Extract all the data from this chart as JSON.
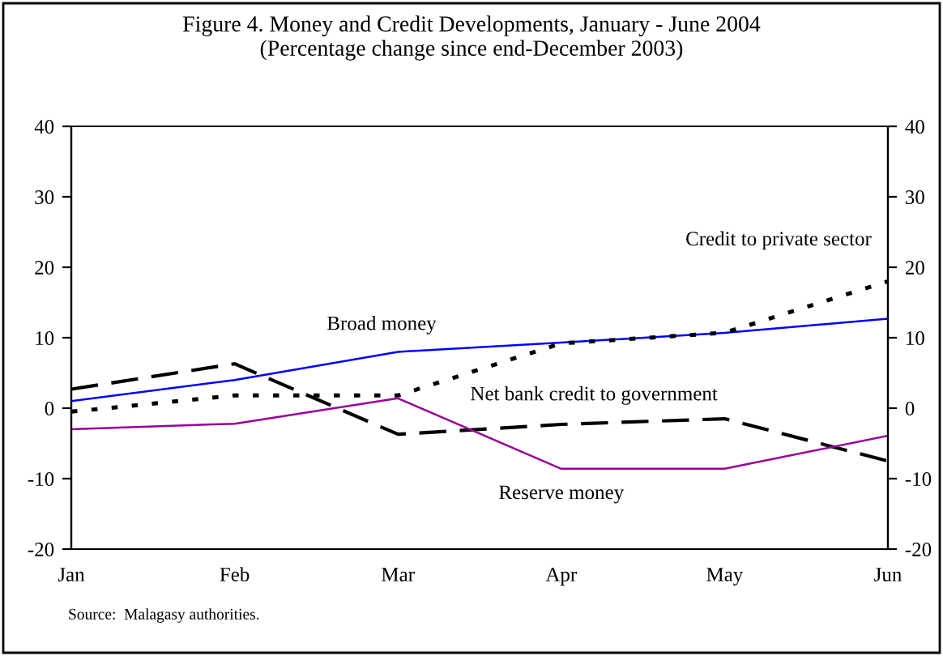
{
  "chart_data": {
    "type": "line",
    "title": "Figure 4. Money and Credit Developments, January - June 2004",
    "subtitle": "(Percentage change since end-December 2003)",
    "categories": [
      "Jan",
      "Feb",
      "Mar",
      "Apr",
      "May",
      "Jun"
    ],
    "series": [
      {
        "name": "Broad money",
        "color": "#0000ff",
        "line_style": "solid",
        "values": [
          1,
          4,
          8,
          9.3,
          10.7,
          12.7
        ]
      },
      {
        "name": "Credit to private sector",
        "color": "#000000",
        "line_style": "dotted",
        "values": [
          -0.5,
          1.8,
          1.8,
          9.2,
          10.7,
          18
        ]
      },
      {
        "name": "Net bank credit to government",
        "color": "#000000",
        "line_style": "dashed",
        "values": [
          2.7,
          6.3,
          -3.7,
          -2.3,
          -1.5,
          -7.5
        ]
      },
      {
        "name": "Reserve money",
        "color": "#990099",
        "line_style": "solid",
        "values": [
          -3,
          -2.2,
          1.4,
          -8.6,
          -8.6,
          -3.9
        ]
      }
    ],
    "ylim": [
      -20,
      40
    ],
    "yticks": [
      -20,
      -10,
      0,
      10,
      20,
      30,
      40
    ],
    "y2lim": [
      -20,
      40
    ],
    "y2ticks": [
      -20,
      -10,
      0,
      10,
      20,
      30,
      40
    ],
    "grid": false,
    "legend": false,
    "marker": "none",
    "annotations": [
      "Source:  Malagasy authorities."
    ]
  }
}
